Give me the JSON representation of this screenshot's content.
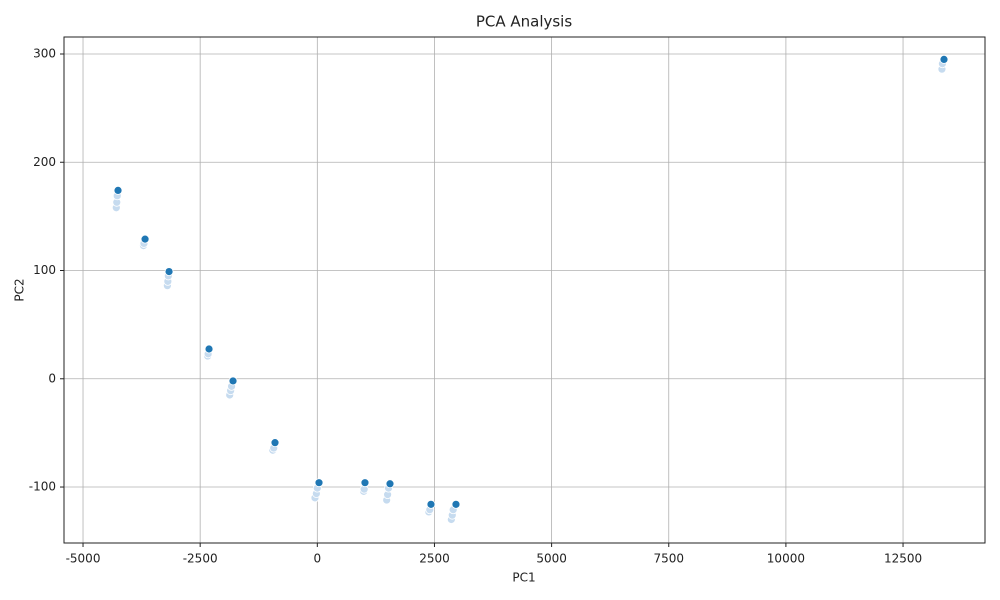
{
  "chart_data": {
    "type": "scatter",
    "title": "PCA Analysis",
    "x_label": "PC1",
    "y_label": "PC2",
    "x": [
      -4290,
      -4280,
      -4270,
      -4253,
      -3710,
      -3700,
      -3676,
      -3200,
      -3190,
      -3180,
      -3164,
      -2340,
      -2330,
      -2311,
      -1870,
      -1850,
      -1830,
      -1799,
      -950,
      -930,
      -903,
      -50,
      -20,
      0,
      36,
      990,
      1000,
      1017,
      1480,
      1500,
      1520,
      1551,
      2380,
      2400,
      2426,
      2860,
      2880,
      2900,
      2959,
      13330,
      13340,
      13374
    ],
    "values": [
      158,
      163,
      169,
      174,
      123,
      125,
      129,
      86,
      90,
      95,
      99,
      21,
      23,
      27.5,
      -15,
      -11,
      -7,
      -2,
      -66,
      -64,
      -59,
      -110,
      -106,
      -101,
      -96,
      -104,
      -102,
      -96,
      -112,
      -107,
      -101,
      -97,
      -123,
      -121,
      -116,
      -130,
      -126,
      -121,
      -116,
      286,
      291,
      295
    ],
    "colors": [
      "#c6dbef",
      "#c6dbef",
      "#c6dbef",
      "#1f77b4",
      "#c6dbef",
      "#c6dbef",
      "#1f77b4",
      "#c6dbef",
      "#c6dbef",
      "#c6dbef",
      "#1f77b4",
      "#c6dbef",
      "#c6dbef",
      "#1f77b4",
      "#c6dbef",
      "#c6dbef",
      "#c6dbef",
      "#1f77b4",
      "#c6dbef",
      "#c6dbef",
      "#1f77b4",
      "#c6dbef",
      "#c6dbef",
      "#c6dbef",
      "#1f77b4",
      "#c6dbef",
      "#c6dbef",
      "#1f77b4",
      "#c6dbef",
      "#c6dbef",
      "#c6dbef",
      "#1f77b4",
      "#c6dbef",
      "#c6dbef",
      "#1f77b4",
      "#c6dbef",
      "#c6dbef",
      "#c6dbef",
      "#1f77b4",
      "#c6dbef",
      "#c6dbef",
      "#1f77b4"
    ],
    "xlim": [
      -5406,
      14249
    ],
    "ylim": [
      -151.7,
      315.7
    ],
    "xticks": [
      -5000,
      -2500,
      0,
      2500,
      5000,
      7500,
      10000,
      12500
    ],
    "yticks": [
      -100,
      0,
      100,
      200,
      300
    ],
    "grid": true
  }
}
